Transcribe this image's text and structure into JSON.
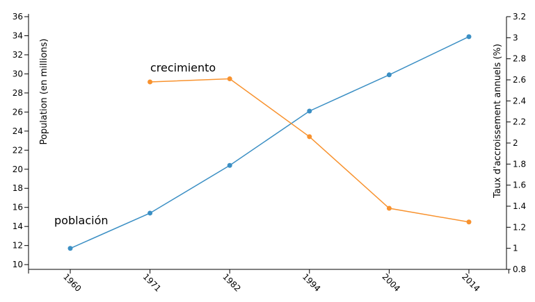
{
  "chart_data": {
    "type": "line",
    "x": [
      "1960",
      "1971",
      "1982",
      "1994",
      "2004",
      "2014"
    ],
    "series": [
      {
        "name": "población",
        "axis": "left",
        "color": "#3b8fc4",
        "values": [
          11.7,
          15.4,
          20.4,
          26.1,
          29.9,
          33.9
        ]
      },
      {
        "name": "crecimiento",
        "axis": "right",
        "color": "#f8922e",
        "values": [
          null,
          2.58,
          2.61,
          2.06,
          1.38,
          1.25
        ]
      }
    ],
    "y_left": {
      "label": "Population (en millions)",
      "range": [
        9.5,
        36
      ],
      "ticks": [
        10,
        12,
        14,
        16,
        18,
        20,
        22,
        24,
        26,
        28,
        30,
        32,
        34,
        36
      ]
    },
    "y_right": {
      "label": "Taux d'accroissement annuels (%)",
      "range": [
        0.8,
        3.2
      ],
      "ticks": [
        "0.8",
        "1",
        "1.2",
        "1.4",
        "1.6",
        "1.8",
        "2",
        "2.2",
        "2.4",
        "2.6",
        "2.8",
        "3",
        "3.2"
      ]
    },
    "annotations": [
      {
        "text": "población"
      },
      {
        "text": "crecimiento"
      }
    ],
    "grid": false
  }
}
